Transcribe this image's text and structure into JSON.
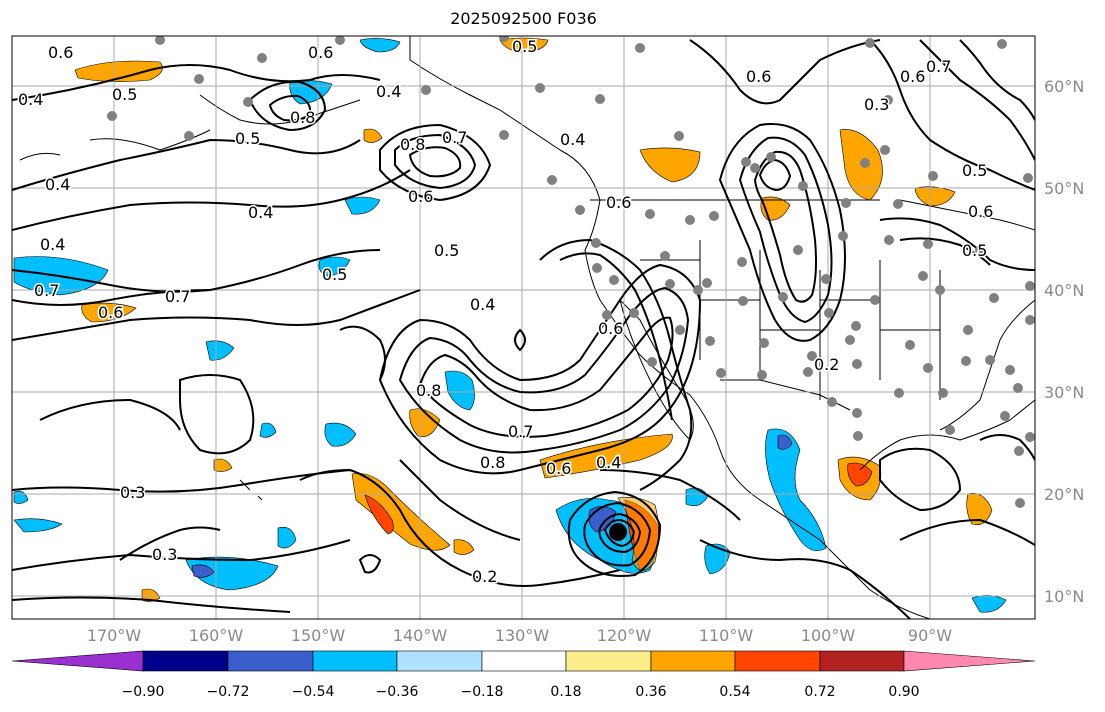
{
  "title": "2025092500 F036",
  "lat_labels": [
    "60°N",
    "50°N",
    "40°N",
    "30°N",
    "20°N",
    "10°N"
  ],
  "lon_labels": [
    "170°W",
    "160°W",
    "150°W",
    "140°W",
    "130°W",
    "120°W",
    "110°W",
    "100°W",
    "90°W"
  ],
  "colorbar": {
    "ticks": [
      "−0.90",
      "−0.72",
      "−0.54",
      "−0.36",
      "−0.18",
      "0.18",
      "0.36",
      "0.54",
      "0.72",
      "0.90"
    ],
    "colors": [
      "#9b30d0",
      "#00008b",
      "#3a5fcd",
      "#00bfff",
      "#b0e2ff",
      "#ffffff",
      "#ffec8b",
      "#ffa500",
      "#ff4500",
      "#b22222",
      "#ff88b0"
    ]
  },
  "colors": {
    "contour": "#000000",
    "station_dot": "#808080",
    "grid": "#aaaaaa",
    "axis_label": "#8a8a8a"
  },
  "contour_labels": [
    "0.6",
    "0.4",
    "0.5",
    "0.8",
    "0.4",
    "0.5",
    "0.4",
    "0.8",
    "0.7",
    "0.6",
    "0.4",
    "0.5",
    "0.7",
    "0.6",
    "0.4",
    "0.7",
    "0.6",
    "0.5",
    "0.4",
    "0.8",
    "0.7",
    "0.8",
    "0.3",
    "0.3",
    "0.2",
    "0.4",
    "0.6",
    "0.6",
    "0.5",
    "0.6",
    "0.7",
    "0.6",
    "0.3",
    "0.5",
    "0.6",
    "0.5",
    "0.2",
    "0.6",
    "0.4"
  ]
}
